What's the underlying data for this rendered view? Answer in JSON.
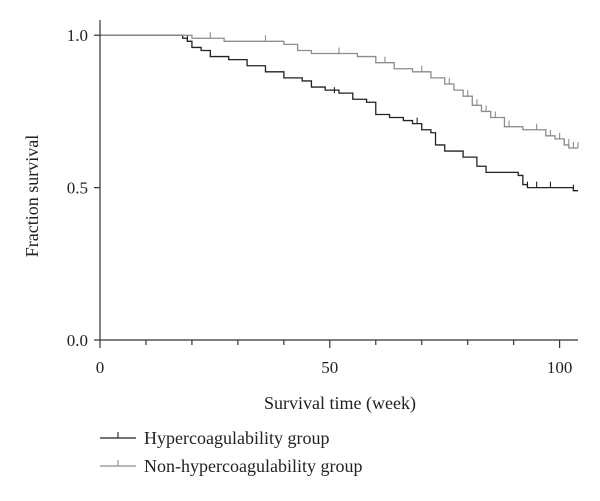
{
  "chart_data": {
    "type": "line",
    "xlabel": "Survival time (week)",
    "ylabel": "Fraction survival",
    "xlim": [
      0,
      104
    ],
    "ylim": [
      0,
      1.05
    ],
    "x_ticks": [
      0,
      50,
      100
    ],
    "x_tick_labels": [
      "0",
      "50",
      "100"
    ],
    "x_minor_ticks": [
      10,
      20,
      30,
      40,
      60,
      70,
      80,
      90
    ],
    "y_ticks": [
      0,
      0.5,
      1
    ],
    "y_tick_labels": [
      "0.0",
      "0.5",
      "1.0"
    ],
    "grid": false,
    "legend_position": "bottom",
    "series": [
      {
        "name": "Hypercoagulability group",
        "color": "#222222",
        "steps": [
          [
            0,
            1.0
          ],
          [
            18,
            0.99
          ],
          [
            19,
            0.98
          ],
          [
            20,
            0.96
          ],
          [
            22,
            0.95
          ],
          [
            24,
            0.93
          ],
          [
            28,
            0.92
          ],
          [
            32,
            0.9
          ],
          [
            36,
            0.88
          ],
          [
            40,
            0.86
          ],
          [
            44,
            0.85
          ],
          [
            46,
            0.83
          ],
          [
            49,
            0.82
          ],
          [
            52,
            0.81
          ],
          [
            55,
            0.79
          ],
          [
            58,
            0.78
          ],
          [
            60,
            0.74
          ],
          [
            63,
            0.73
          ],
          [
            66,
            0.72
          ],
          [
            68,
            0.71
          ],
          [
            70,
            0.69
          ],
          [
            72,
            0.68
          ],
          [
            73,
            0.64
          ],
          [
            75,
            0.62
          ],
          [
            79,
            0.6
          ],
          [
            82,
            0.57
          ],
          [
            84,
            0.55
          ],
          [
            91,
            0.54
          ],
          [
            92,
            0.51
          ],
          [
            93,
            0.5
          ],
          [
            103,
            0.49
          ]
        ],
        "end_x": 104,
        "censored": [
          [
            19,
            0.98
          ],
          [
            51,
            0.81
          ],
          [
            69,
            0.71
          ],
          [
            93,
            0.5
          ],
          [
            95,
            0.5
          ],
          [
            98,
            0.5
          ],
          [
            103,
            0.49
          ]
        ]
      },
      {
        "name": "Non-hypercoagulability group",
        "color": "#8c8c8c",
        "steps": [
          [
            0,
            1.0
          ],
          [
            20,
            0.99
          ],
          [
            27,
            0.98
          ],
          [
            40,
            0.97
          ],
          [
            43,
            0.95
          ],
          [
            46,
            0.94
          ],
          [
            56,
            0.93
          ],
          [
            60,
            0.91
          ],
          [
            64,
            0.89
          ],
          [
            68,
            0.88
          ],
          [
            72,
            0.86
          ],
          [
            75,
            0.84
          ],
          [
            77,
            0.82
          ],
          [
            79,
            0.8
          ],
          [
            81,
            0.77
          ],
          [
            83,
            0.75
          ],
          [
            85,
            0.73
          ],
          [
            88,
            0.7
          ],
          [
            92,
            0.69
          ],
          [
            97,
            0.67
          ],
          [
            99,
            0.66
          ],
          [
            101,
            0.64
          ],
          [
            102,
            0.63
          ]
        ],
        "end_x": 104,
        "censored": [
          [
            24,
            0.99
          ],
          [
            36,
            0.98
          ],
          [
            52,
            0.94
          ],
          [
            62,
            0.91
          ],
          [
            70,
            0.88
          ],
          [
            76,
            0.84
          ],
          [
            80,
            0.8
          ],
          [
            82,
            0.77
          ],
          [
            84,
            0.75
          ],
          [
            86,
            0.73
          ],
          [
            89,
            0.7
          ],
          [
            95,
            0.69
          ],
          [
            98,
            0.67
          ],
          [
            100,
            0.66
          ],
          [
            101,
            0.64
          ],
          [
            102,
            0.64
          ],
          [
            103,
            0.63
          ],
          [
            104,
            0.63
          ]
        ]
      }
    ]
  }
}
